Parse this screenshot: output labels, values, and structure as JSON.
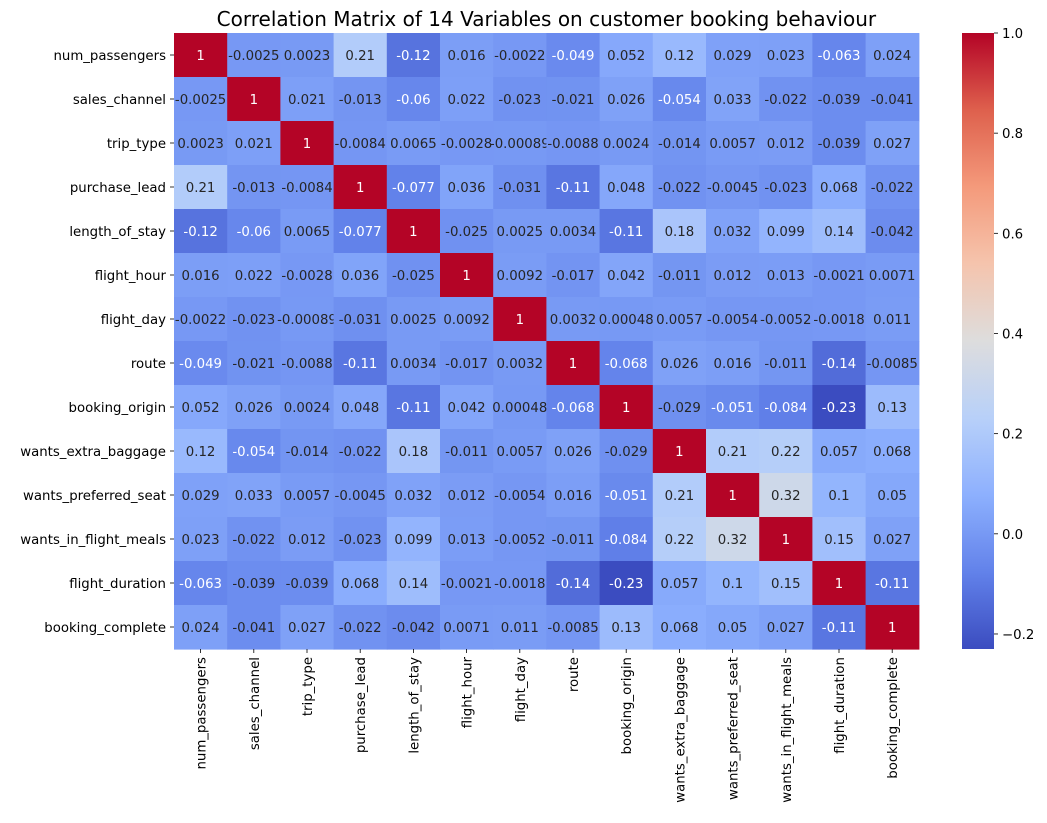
{
  "chart_data": {
    "type": "heatmap",
    "title": "Correlation Matrix of 14 Variables on customer booking behaviour",
    "variables": [
      "num_passengers",
      "sales_channel",
      "trip_type",
      "purchase_lead",
      "length_of_stay",
      "flight_hour",
      "flight_day",
      "route",
      "booking_origin",
      "wants_extra_baggage",
      "wants_preferred_seat",
      "wants_in_flight_meals",
      "flight_duration",
      "booking_complete"
    ],
    "values": [
      [
        1,
        -0.0025,
        0.0023,
        0.21,
        -0.12,
        0.016,
        -0.0022,
        -0.049,
        0.052,
        0.12,
        0.029,
        0.023,
        -0.063,
        0.024
      ],
      [
        -0.0025,
        1,
        0.021,
        -0.013,
        -0.06,
        0.022,
        -0.023,
        -0.021,
        0.026,
        -0.054,
        0.033,
        -0.022,
        -0.039,
        -0.041
      ],
      [
        0.0023,
        0.021,
        1,
        -0.0084,
        0.0065,
        -0.0028,
        -0.00089,
        -0.0088,
        0.0024,
        -0.014,
        0.0057,
        0.012,
        -0.039,
        0.027
      ],
      [
        0.21,
        -0.013,
        -0.0084,
        1,
        -0.077,
        0.036,
        -0.031,
        -0.11,
        0.048,
        -0.022,
        -0.0045,
        -0.023,
        0.068,
        -0.022
      ],
      [
        -0.12,
        -0.06,
        0.0065,
        -0.077,
        1,
        -0.025,
        0.0025,
        0.0034,
        -0.11,
        0.18,
        0.032,
        0.099,
        0.14,
        -0.042
      ],
      [
        0.016,
        0.022,
        -0.0028,
        0.036,
        -0.025,
        1,
        0.0092,
        -0.017,
        0.042,
        -0.011,
        0.012,
        0.013,
        -0.0021,
        0.0071
      ],
      [
        -0.0022,
        -0.023,
        -0.00089,
        -0.031,
        0.0025,
        0.0092,
        1,
        0.0032,
        0.00048,
        0.0057,
        -0.0054,
        -0.0052,
        -0.0018,
        0.011
      ],
      [
        -0.049,
        -0.021,
        -0.0088,
        -0.11,
        0.0034,
        -0.017,
        0.0032,
        1,
        -0.068,
        0.026,
        0.016,
        -0.011,
        -0.14,
        -0.0085
      ],
      [
        0.052,
        0.026,
        0.0024,
        0.048,
        -0.11,
        0.042,
        0.00048,
        -0.068,
        1,
        -0.029,
        -0.051,
        -0.084,
        -0.23,
        0.13
      ],
      [
        0.12,
        -0.054,
        -0.014,
        -0.022,
        0.18,
        -0.011,
        0.0057,
        0.026,
        -0.029,
        1,
        0.21,
        0.22,
        0.057,
        0.068
      ],
      [
        0.029,
        0.033,
        0.0057,
        -0.0045,
        0.032,
        0.012,
        -0.0054,
        0.016,
        -0.051,
        0.21,
        1,
        0.32,
        0.1,
        0.05
      ],
      [
        0.023,
        -0.022,
        0.012,
        -0.023,
        0.099,
        0.013,
        -0.0052,
        -0.011,
        -0.084,
        0.22,
        0.32,
        1,
        0.15,
        0.027
      ],
      [
        -0.063,
        -0.039,
        -0.039,
        0.068,
        0.14,
        -0.0021,
        -0.0018,
        -0.14,
        -0.23,
        0.057,
        0.1,
        0.15,
        1,
        -0.11
      ],
      [
        0.024,
        -0.041,
        0.027,
        -0.022,
        -0.042,
        0.0071,
        0.011,
        -0.0085,
        0.13,
        0.068,
        0.05,
        0.027,
        -0.11,
        1
      ]
    ],
    "vmin": -0.23,
    "vmax": 1,
    "colormap": "coolwarm",
    "colorbar_ticks": [
      -0.2,
      0.0,
      0.2,
      0.4,
      0.6,
      0.8,
      1.0
    ],
    "colorbar_tick_labels": [
      "−0.2",
      "0.0",
      "0.2",
      "0.4",
      "0.6",
      "0.8",
      "1.0"
    ],
    "annotations": true
  }
}
